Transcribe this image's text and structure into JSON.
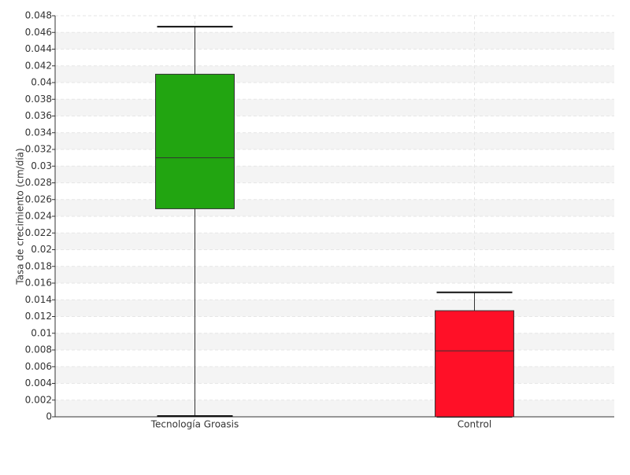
{
  "chart_data": {
    "type": "box",
    "y_label": "Tasa de crecimiento (cm/día)",
    "categories": [
      "Tecnología Groasis",
      "Control"
    ],
    "boxes": [
      {
        "min": 0.0001,
        "q1": 0.0249,
        "median": 0.031,
        "q3": 0.041,
        "max": 0.0467,
        "color": "#22a511"
      },
      {
        "min": 0,
        "q1": 0,
        "median": 0.0079,
        "q3": 0.0127,
        "max": 0.0149,
        "color": "#ff1027"
      }
    ],
    "ylim": [
      0,
      0.048
    ],
    "yticks": [
      0,
      0.002,
      0.004,
      0.006,
      0.008,
      0.01,
      0.012,
      0.014,
      0.016,
      0.018,
      0.02,
      0.022,
      0.024,
      0.026,
      0.028,
      0.03,
      0.032,
      0.034,
      0.036,
      0.038,
      0.04,
      0.042,
      0.044,
      0.046,
      0.048
    ],
    "grid": true
  }
}
